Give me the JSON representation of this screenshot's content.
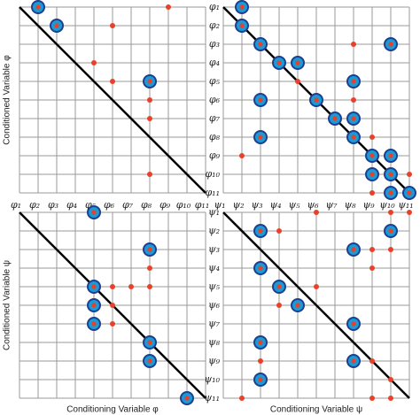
{
  "chart_data": [
    {
      "type": "scatter",
      "ylabel": "Conditioned Variable φ",
      "x_categories": [
        "φ₁",
        "φ₂",
        "φ₃",
        "φ₄",
        "φ₅",
        "φ₆",
        "φ₇",
        "φ₈",
        "φ₉",
        "φ₁₀",
        "φ₁₁"
      ],
      "points": [
        {
          "x": 2,
          "y": 1,
          "kind": "large"
        },
        {
          "x": 3,
          "y": 2,
          "kind": "large"
        },
        {
          "x": 9,
          "y": 1,
          "kind": "small"
        },
        {
          "x": 6,
          "y": 2,
          "kind": "small"
        },
        {
          "x": 5,
          "y": 4,
          "kind": "small"
        },
        {
          "x": 6,
          "y": 5,
          "kind": "small"
        },
        {
          "x": 8,
          "y": 5,
          "kind": "large"
        },
        {
          "x": 8,
          "y": 6,
          "kind": "small"
        },
        {
          "x": 8,
          "y": 7,
          "kind": "small"
        },
        {
          "x": 8,
          "y": 10,
          "kind": "small"
        }
      ]
    },
    {
      "type": "scatter",
      "y_categories": [
        "φ₁",
        "φ₂",
        "φ₃",
        "φ₄",
        "φ₅",
        "φ₆",
        "φ₇",
        "φ₈",
        "φ₉",
        "φ₁₀",
        "φ₁₁"
      ],
      "x_categories": [
        "ψ₁",
        "ψ₂",
        "ψ₃",
        "ψ₄",
        "ψ₅",
        "ψ₆",
        "ψ₇",
        "ψ₈",
        "ψ₉",
        "ψ₁₀",
        "ψ₁₁"
      ],
      "points": [
        {
          "x": 2,
          "y": 1,
          "kind": "large"
        },
        {
          "x": 2,
          "y": 2,
          "kind": "large"
        },
        {
          "x": 3,
          "y": 3,
          "kind": "large"
        },
        {
          "x": 4,
          "y": 4,
          "kind": "large"
        },
        {
          "x": 5,
          "y": 4,
          "kind": "large"
        },
        {
          "x": 5,
          "y": 5,
          "kind": "small"
        },
        {
          "x": 6,
          "y": 6,
          "kind": "large"
        },
        {
          "x": 7,
          "y": 7,
          "kind": "large"
        },
        {
          "x": 8,
          "y": 8,
          "kind": "large"
        },
        {
          "x": 9,
          "y": 9,
          "kind": "large"
        },
        {
          "x": 10,
          "y": 9,
          "kind": "large"
        },
        {
          "x": 9,
          "y": 10,
          "kind": "large"
        },
        {
          "x": 10,
          "y": 10,
          "kind": "large"
        },
        {
          "x": 10,
          "y": 11,
          "kind": "large"
        },
        {
          "x": 11,
          "y": 11,
          "kind": "large"
        },
        {
          "x": 3,
          "y": 6,
          "kind": "large"
        },
        {
          "x": 3,
          "y": 8,
          "kind": "large"
        },
        {
          "x": 2,
          "y": 9,
          "kind": "small"
        },
        {
          "x": 8,
          "y": 3,
          "kind": "small"
        },
        {
          "x": 10,
          "y": 3,
          "kind": "large"
        },
        {
          "x": 8,
          "y": 5,
          "kind": "large"
        },
        {
          "x": 8,
          "y": 6,
          "kind": "small"
        },
        {
          "x": 8,
          "y": 7,
          "kind": "large"
        },
        {
          "x": 9,
          "y": 8,
          "kind": "small"
        },
        {
          "x": 11,
          "y": 10,
          "kind": "small"
        },
        {
          "x": 9,
          "y": 11,
          "kind": "small"
        }
      ]
    },
    {
      "type": "scatter",
      "ylabel": "Conditioned Variable ψ",
      "xlabel": "Conditioning Variable φ",
      "points": [
        {
          "x": 5,
          "y": 1,
          "kind": "large"
        },
        {
          "x": 8,
          "y": 3,
          "kind": "large"
        },
        {
          "x": 8,
          "y": 4,
          "kind": "small"
        },
        {
          "x": 5,
          "y": 5,
          "kind": "large"
        },
        {
          "x": 6,
          "y": 5,
          "kind": "small"
        },
        {
          "x": 7,
          "y": 5,
          "kind": "small"
        },
        {
          "x": 8,
          "y": 5,
          "kind": "small"
        },
        {
          "x": 5,
          "y": 6,
          "kind": "large"
        },
        {
          "x": 6,
          "y": 6,
          "kind": "small"
        },
        {
          "x": 5,
          "y": 7,
          "kind": "large"
        },
        {
          "x": 6,
          "y": 7,
          "kind": "small"
        },
        {
          "x": 8,
          "y": 8,
          "kind": "large"
        },
        {
          "x": 8,
          "y": 9,
          "kind": "large"
        },
        {
          "x": 10,
          "y": 11,
          "kind": "large"
        }
      ]
    },
    {
      "type": "scatter",
      "xlabel": "Conditioning Variable ψ",
      "y_categories": [
        "ψ₁",
        "ψ₂",
        "ψ₃",
        "ψ₄",
        "ψ₅",
        "ψ₆",
        "ψ₇",
        "ψ₈",
        "ψ₉",
        "ψ₁₀",
        "ψ₁₁"
      ],
      "points": [
        {
          "x": 6,
          "y": 1,
          "kind": "small"
        },
        {
          "x": 10,
          "y": 1,
          "kind": "small"
        },
        {
          "x": 11,
          "y": 1,
          "kind": "small"
        },
        {
          "x": 3,
          "y": 2,
          "kind": "large"
        },
        {
          "x": 4,
          "y": 2,
          "kind": "small"
        },
        {
          "x": 10,
          "y": 2,
          "kind": "large"
        },
        {
          "x": 8,
          "y": 3,
          "kind": "large"
        },
        {
          "x": 9,
          "y": 3,
          "kind": "small"
        },
        {
          "x": 10,
          "y": 3,
          "kind": "small"
        },
        {
          "x": 3,
          "y": 4,
          "kind": "large"
        },
        {
          "x": 9,
          "y": 4,
          "kind": "small"
        },
        {
          "x": 4,
          "y": 5,
          "kind": "large"
        },
        {
          "x": 6,
          "y": 5,
          "kind": "small"
        },
        {
          "x": 5,
          "y": 6,
          "kind": "large"
        },
        {
          "x": 4,
          "y": 6,
          "kind": "small"
        },
        {
          "x": 8,
          "y": 7,
          "kind": "large"
        },
        {
          "x": 3,
          "y": 8,
          "kind": "large"
        },
        {
          "x": 8,
          "y": 9,
          "kind": "large"
        },
        {
          "x": 3,
          "y": 9,
          "kind": "small"
        },
        {
          "x": 9,
          "y": 9,
          "kind": "small"
        },
        {
          "x": 3,
          "y": 10,
          "kind": "large"
        },
        {
          "x": 2,
          "y": 11,
          "kind": "small"
        },
        {
          "x": 9,
          "y": 11,
          "kind": "small"
        },
        {
          "x": 10,
          "y": 10,
          "kind": "small"
        },
        {
          "x": 10,
          "y": 11,
          "kind": "small"
        }
      ]
    }
  ]
}
